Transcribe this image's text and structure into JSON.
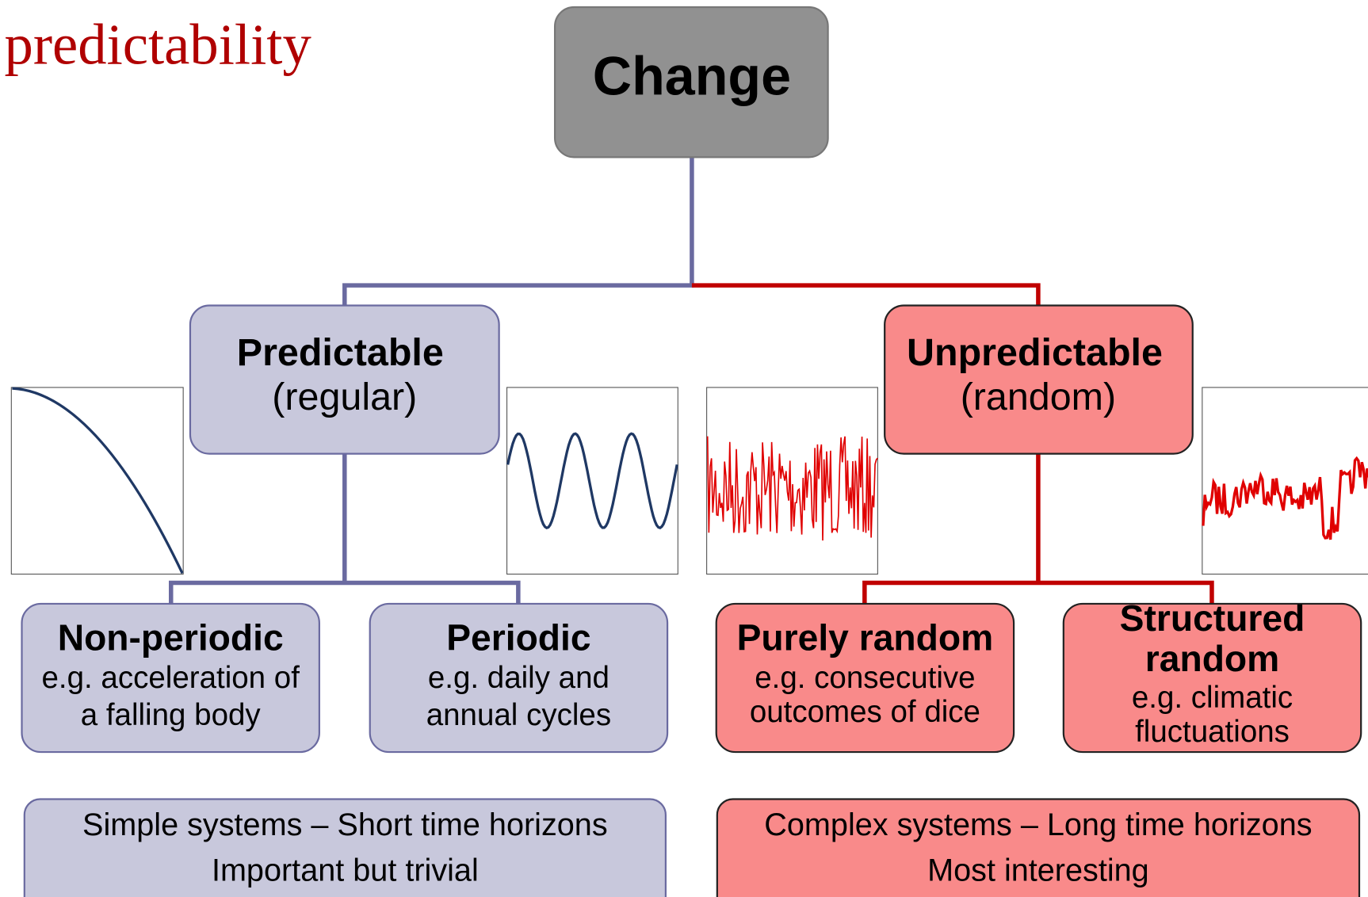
{
  "title": "predictability",
  "root": {
    "label": "Change"
  },
  "branches": [
    {
      "title": "Predictable",
      "subtitle": "(regular)"
    },
    {
      "title": "Unpredictable",
      "subtitle": "(random)"
    }
  ],
  "leaves": [
    {
      "title": [
        "Non-periodic"
      ],
      "description": [
        "e.g. acceleration of",
        "a falling body"
      ]
    },
    {
      "title": [
        "Periodic"
      ],
      "description": [
        "e.g. daily and",
        "annual cycles"
      ]
    },
    {
      "title": [
        "Purely random"
      ],
      "description": [
        "e.g. consecutive",
        "outcomes of dice"
      ]
    },
    {
      "title": [
        "Structured",
        "random"
      ],
      "description": [
        "e.g. climatic",
        "fluctuations"
      ]
    }
  ],
  "footers": [
    {
      "lines": [
        "Simple systems – Short time horizons",
        "Important but trivial"
      ]
    },
    {
      "lines": [
        "Complex systems – Long time horizons",
        "Most interesting"
      ]
    }
  ]
}
